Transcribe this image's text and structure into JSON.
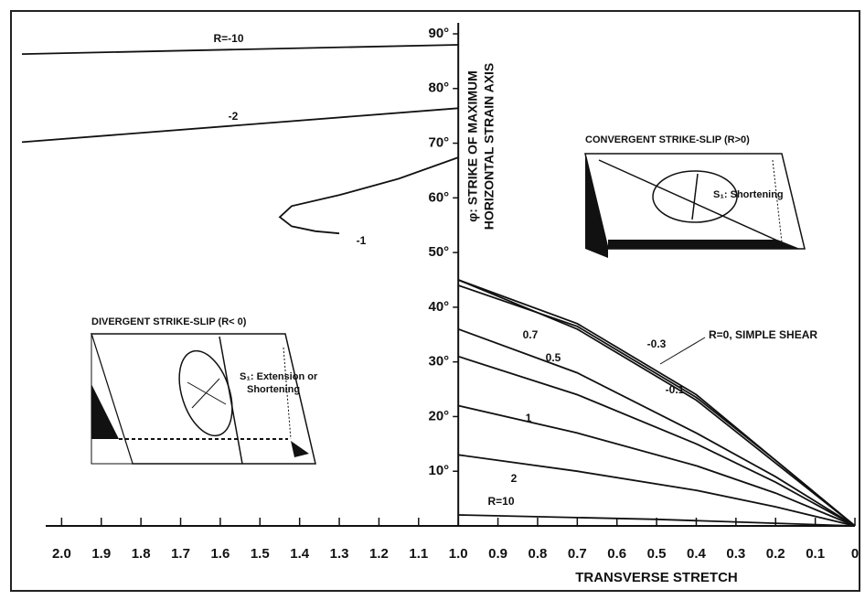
{
  "chart_data": {
    "type": "line",
    "x_label": "TRANSVERSE STRETCH",
    "y_label": [
      "φ: STRIKE OF MAXIMUM",
      "HORIZONTAL STRAIN AXIS"
    ],
    "xlim": [
      2.1,
      0
    ],
    "ylim": [
      0,
      90
    ],
    "xticks": [
      {
        "value": 2,
        "label": "2.0"
      },
      1.9,
      1.8,
      1.7,
      1.6,
      1.5,
      1.4,
      1.3,
      1.2,
      1.1,
      {
        "value": 1,
        "label": "1.0"
      },
      0.9,
      0.8,
      0.7,
      0.6,
      0.5,
      0.4,
      0.3,
      0.2,
      0.1,
      0
    ],
    "yticks": [
      {
        "value": 10,
        "label": "10°"
      },
      {
        "value": 20,
        "label": "20°"
      },
      {
        "value": 30,
        "label": "30°"
      },
      {
        "value": 40,
        "label": "40°"
      },
      {
        "value": 50,
        "label": "50°"
      },
      {
        "value": 60,
        "label": "60°"
      },
      {
        "value": 70,
        "label": "70°"
      },
      {
        "value": 80,
        "label": "80°"
      },
      {
        "value": 90,
        "label": "90°"
      }
    ],
    "color": "#111111",
    "series": [
      {
        "name": "R=-10",
        "x": [
          2.1,
          1.0
        ],
        "values": [
          86.3,
          88
        ]
      },
      {
        "name": "-2",
        "x": [
          2.1,
          1.0
        ],
        "values": [
          70.2,
          76.4
        ]
      },
      {
        "name": "-1",
        "x": [
          1.0,
          1.15,
          1.3,
          1.42,
          1.45,
          1.42,
          1.36,
          1.3
        ],
        "values": [
          67.4,
          63.5,
          60.5,
          58.5,
          56.5,
          54.8,
          53.9,
          53.5
        ]
      },
      {
        "name": "-0.3",
        "x": [
          1.0,
          0.7,
          0.4,
          0.2,
          0
        ],
        "values": [
          45,
          36,
          23,
          11.5,
          0
        ]
      },
      {
        "name": "R=0, SIMPLE SHEAR",
        "x": [
          1.0,
          0.7,
          0.4,
          0.2,
          0
        ],
        "values": [
          45,
          37,
          24,
          12,
          0
        ]
      },
      {
        "name": "-0.1",
        "x": [
          1.0,
          0.7,
          0.4,
          0.2,
          0
        ],
        "values": [
          44,
          36.5,
          23.5,
          12,
          0
        ]
      },
      {
        "name": "0.7",
        "x": [
          1.0,
          0.7,
          0.4,
          0.2,
          0
        ],
        "values": [
          36,
          28,
          17,
          9,
          0
        ]
      },
      {
        "name": "0.5",
        "x": [
          1.0,
          0.7,
          0.4,
          0.2,
          0
        ],
        "values": [
          31,
          24,
          15,
          8,
          0
        ]
      },
      {
        "name": "1",
        "x": [
          1.0,
          0.7,
          0.4,
          0.2,
          0
        ],
        "values": [
          22,
          17,
          11,
          6,
          0
        ]
      },
      {
        "name": "2",
        "x": [
          1.0,
          0.7,
          0.4,
          0.2,
          0
        ],
        "values": [
          13,
          10,
          6.5,
          3.5,
          0
        ]
      },
      {
        "name": "R=10",
        "x": [
          1.0,
          0.5,
          0
        ],
        "values": [
          2,
          1.2,
          0
        ]
      }
    ],
    "annotations": [
      {
        "title": "CONVERGENT STRIKE-SLIP (R>0)",
        "label": "S₁: Shortening"
      },
      {
        "title": "DIVERGENT STRIKE-SLIP (R< 0)",
        "label": [
          "S₁: Extension or",
          "Shortening"
        ]
      }
    ]
  }
}
